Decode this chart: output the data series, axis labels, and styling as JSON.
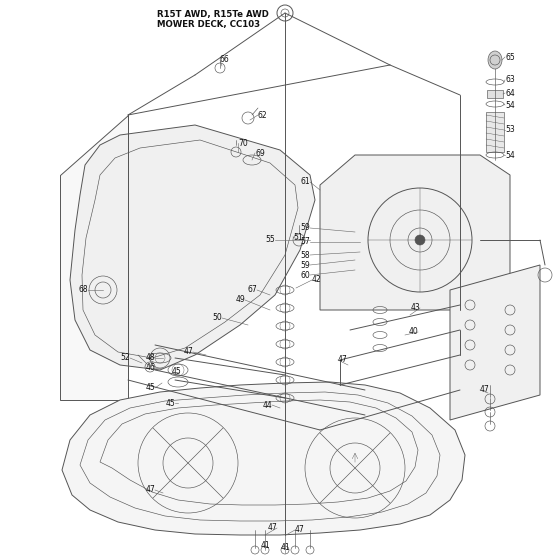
{
  "title_line1": "R15T AWD, R15Te AWD",
  "title_line2": "MOWER DECK, CC103",
  "bg_color": "#ffffff",
  "line_color": "#555555",
  "label_color": "#111111",
  "label_fontsize": 5.5,
  "title_fontsize": 6.2,
  "fig_w": 5.6,
  "fig_h": 5.6,
  "dpi": 100
}
